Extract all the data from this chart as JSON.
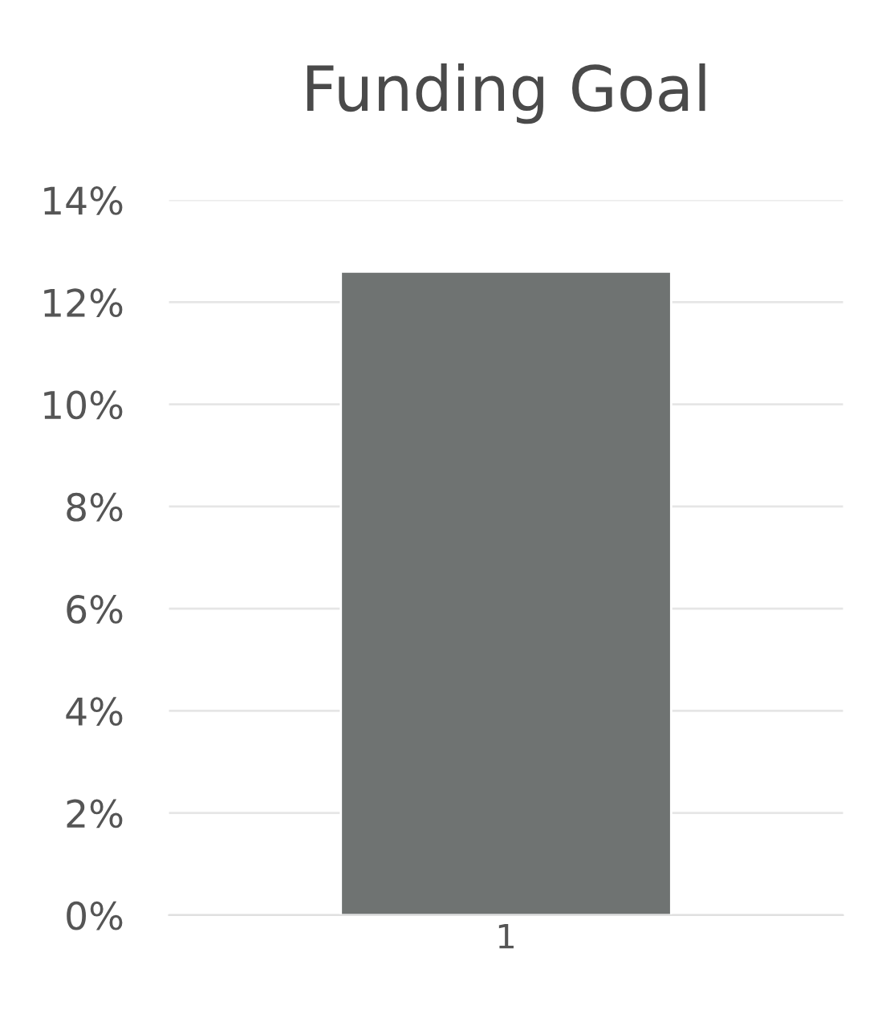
{
  "chart_data": {
    "type": "bar",
    "title": "Funding Goal",
    "categories": [
      "1"
    ],
    "series": [
      {
        "color": "#6f7372",
        "values": [
          12.6
        ]
      }
    ],
    "ylim": [
      0,
      14
    ],
    "yticks": [
      {
        "value": 0,
        "label": "0%"
      },
      {
        "value": 2,
        "label": "2%"
      },
      {
        "value": 4,
        "label": "4%"
      },
      {
        "value": 6,
        "label": "6%"
      },
      {
        "value": 8,
        "label": "8%"
      },
      {
        "value": 10,
        "label": "10%"
      },
      {
        "value": 12,
        "label": "12%"
      },
      {
        "value": 14,
        "label": "14%"
      }
    ],
    "grid": "y",
    "legend": false
  }
}
